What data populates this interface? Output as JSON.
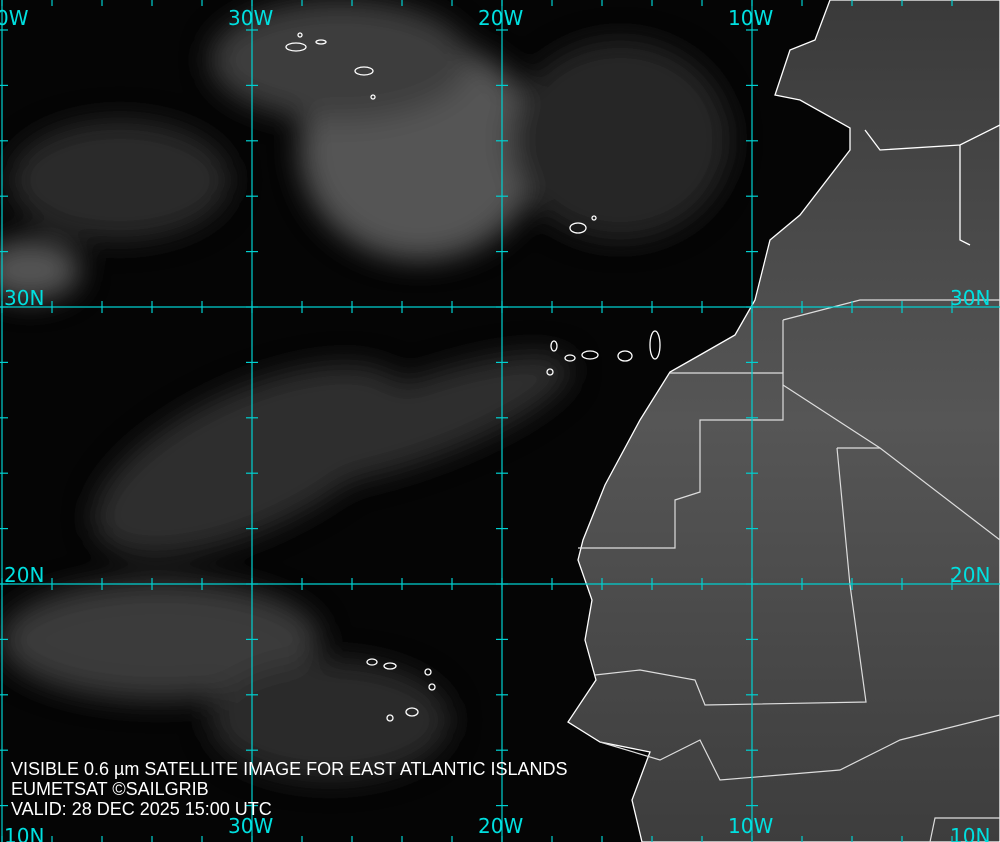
{
  "caption": {
    "line1": "VISIBLE 0.6 µm SATELLITE IMAGE FOR EAST ATLANTIC ISLANDS",
    "line2": "EUMETSAT ©SAILGRIB",
    "line3": "VALID:  28 DEC 2025 15:00 UTC"
  },
  "grid": {
    "color": "#00d0d0",
    "lon_labels": [
      "0W",
      "30W",
      "20W",
      "10W"
    ],
    "lat_labels": [
      "30N",
      "20N",
      "10N"
    ]
  },
  "colors": {
    "land": "#5a5a5a",
    "ocean": "#060606",
    "border": "#ffffff"
  }
}
